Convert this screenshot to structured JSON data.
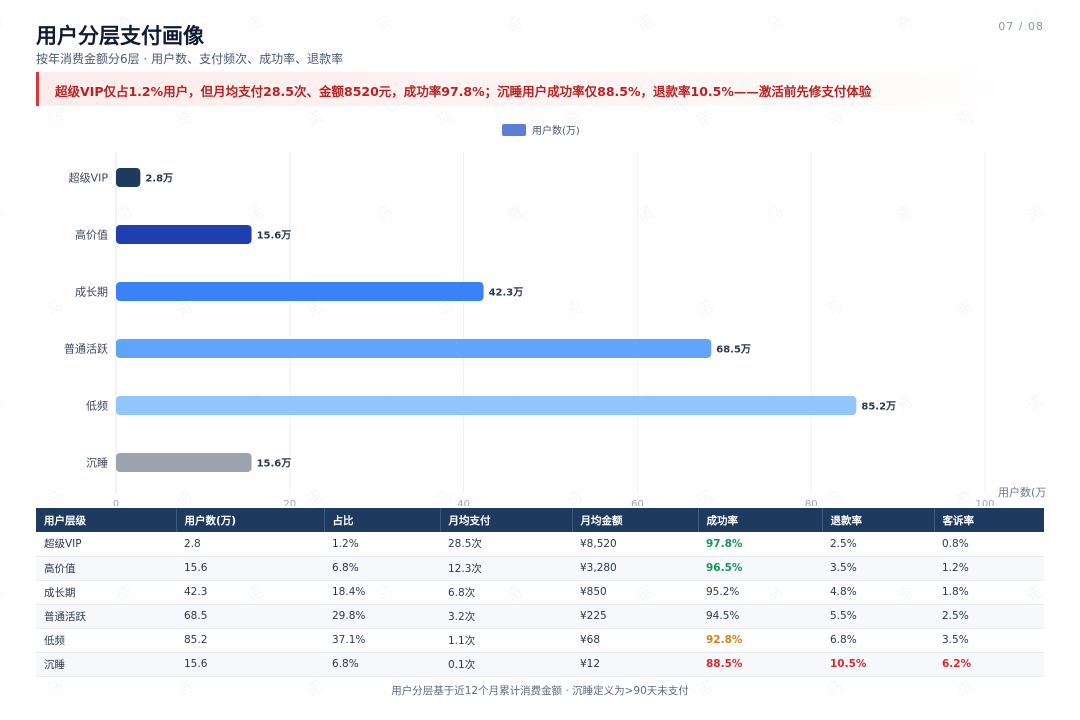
{
  "header": {
    "title": "用户分层支付画像",
    "subtitle": "按年消费金额分6层 · 用户数、支付频次、成功率、退款率",
    "page_num": "07 / 08",
    "alert": "超级VIP仅占1.2%用户，但月均支付28.5次、金额8520元，成功率97.8%；沉睡用户成功率仅88.5%，退款率10.5%——激活前先修支付体验"
  },
  "watermark_text": "马 奇 诺",
  "chart_data": {
    "type": "bar",
    "orientation": "horizontal",
    "categories": [
      "超级VIP",
      "高价值",
      "成长期",
      "普通活跃",
      "低频",
      "沉睡"
    ],
    "series": [
      {
        "name": "用户数(万)",
        "values": [
          2.8,
          15.6,
          42.3,
          68.5,
          85.2,
          15.6
        ]
      }
    ],
    "data_labels": [
      "2.8万",
      "15.6万",
      "42.3万",
      "68.5万",
      "85.2万",
      "15.6万"
    ],
    "bar_colors": [
      "#1e3a5f",
      "#1e40af",
      "#3b82f6",
      "#60a5fa",
      "#93c5fd",
      "#9ca3af"
    ],
    "legend_color": "#5b7fd1",
    "xlabel": "用户数(万",
    "xlim": [
      0,
      100
    ],
    "x_ticks": [
      0,
      20,
      40,
      60,
      80,
      100
    ],
    "grid": true,
    "legend_position": "top-center"
  },
  "table": {
    "headers": [
      "用户层级",
      "用户数(万)",
      "占比",
      "月均支付",
      "月均金额",
      "成功率",
      "退款率",
      "客诉率"
    ],
    "rows": [
      [
        "超级VIP",
        "2.8",
        "1.2%",
        "28.5次",
        "¥8,520",
        "97.8%",
        "2.5%",
        "0.8%"
      ],
      [
        "高价值",
        "15.6",
        "6.8%",
        "12.3次",
        "¥3,280",
        "96.5%",
        "3.5%",
        "1.2%"
      ],
      [
        "成长期",
        "42.3",
        "18.4%",
        "6.8次",
        "¥850",
        "95.2%",
        "4.8%",
        "1.8%"
      ],
      [
        "普通活跃",
        "68.5",
        "29.8%",
        "3.2次",
        "¥225",
        "94.5%",
        "5.5%",
        "2.5%"
      ],
      [
        "低频",
        "85.2",
        "37.1%",
        "1.1次",
        "¥68",
        "92.8%",
        "6.8%",
        "3.5%"
      ],
      [
        "沉睡",
        "15.6",
        "6.8%",
        "0.1次",
        "¥12",
        "88.5%",
        "10.5%",
        "6.2%"
      ]
    ],
    "highlight": [
      [
        "",
        "",
        "",
        "",
        "",
        "good",
        "",
        ""
      ],
      [
        "",
        "",
        "",
        "",
        "",
        "good",
        "",
        ""
      ],
      [
        "",
        "",
        "",
        "",
        "",
        "",
        "",
        ""
      ],
      [
        "",
        "",
        "",
        "",
        "",
        "",
        "",
        ""
      ],
      [
        "",
        "",
        "",
        "",
        "",
        "warn",
        "",
        ""
      ],
      [
        "",
        "",
        "",
        "",
        "",
        "bad",
        "bad",
        "bad"
      ]
    ]
  },
  "footnote": "用户分层基于近12个月累计消费金额 · 沉睡定义为>90天未支付"
}
